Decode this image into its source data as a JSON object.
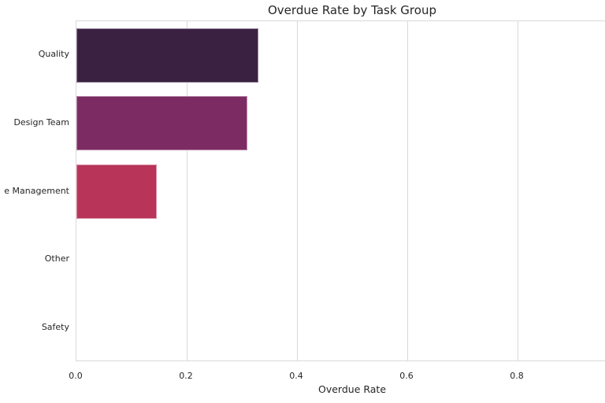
{
  "chart_data": {
    "type": "bar",
    "orientation": "horizontal",
    "title": "Overdue Rate by Task Group",
    "xlabel": "Overdue Rate",
    "ylabel": "",
    "categories": [
      "Quality",
      "Design Team",
      "e Management",
      "Other",
      "Safety"
    ],
    "values": [
      0.33,
      0.31,
      0.145,
      0.0,
      0.0
    ],
    "bar_colors": [
      "#3a2142",
      "#7d2c63",
      "#b83459",
      null,
      null
    ],
    "x_tick_values": [
      0.0,
      0.2,
      0.4,
      0.6,
      0.8
    ],
    "x_tick_labels": [
      "0.0",
      "0.2",
      "0.4",
      "0.6",
      "0.8"
    ],
    "xlim": [
      0.0,
      1.0
    ],
    "grid": "vertical",
    "legend_position": "none"
  },
  "colors": {
    "background": "#ffffff",
    "grid": "#d9d9d9",
    "spine": "#d9d9d9",
    "text": "#262626"
  }
}
